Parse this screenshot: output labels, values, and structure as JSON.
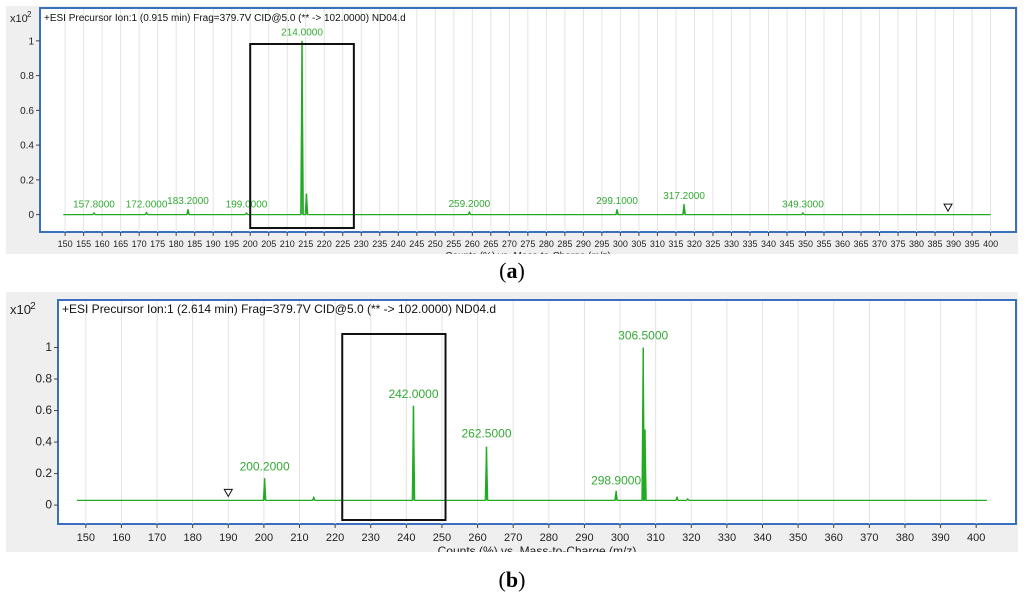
{
  "captions": {
    "a": "a",
    "b": "b"
  },
  "charts": [
    {
      "id": "a",
      "header": "+ESI Precursor Ion:1 (0.915 min) Frag=379.7V CID@5.0 (** -> 102.0000) ND04.d",
      "scale_label": "x10",
      "scale_exp": "2",
      "xlabel": "Counts (%) vs. Mass-to-Charge (m/z)",
      "line_color": "#22aa22",
      "frame_color": "#3a6fbf",
      "chart_data": {
        "type": "line",
        "xlim": [
          147,
          402
        ],
        "ylim": [
          -0.1,
          1.12
        ],
        "x_ticks": [
          150,
          155,
          160,
          165,
          170,
          175,
          180,
          185,
          190,
          195,
          200,
          205,
          210,
          215,
          220,
          225,
          230,
          235,
          240,
          245,
          250,
          255,
          260,
          265,
          270,
          275,
          280,
          285,
          290,
          295,
          300,
          305,
          310,
          315,
          320,
          325,
          330,
          335,
          340,
          345,
          350,
          355,
          360,
          365,
          370,
          375,
          380,
          385,
          390,
          395,
          400
        ],
        "y_ticks": [
          0,
          0.2,
          0.4,
          0.6,
          0.8,
          1
        ],
        "y_tick_labels": [
          "0",
          "0.2",
          "0.4",
          "0.6",
          "0.8",
          "1"
        ],
        "baseline": 0,
        "peaks": [
          {
            "x": 157.8,
            "y": 0.01
          },
          {
            "x": 172.0,
            "y": 0.012
          },
          {
            "x": 183.2,
            "y": 0.03
          },
          {
            "x": 199.0,
            "y": 0.01
          },
          {
            "x": 214.0,
            "y": 1.0
          },
          {
            "x": 215.2,
            "y": 0.12
          },
          {
            "x": 259.2,
            "y": 0.015
          },
          {
            "x": 299.1,
            "y": 0.03
          },
          {
            "x": 317.2,
            "y": 0.06
          },
          {
            "x": 349.3,
            "y": 0.01
          }
        ],
        "peak_labels": [
          {
            "x": 157.8,
            "y": 0.04,
            "text": "157.8000"
          },
          {
            "x": 172.0,
            "y": 0.04,
            "text": "172.0000"
          },
          {
            "x": 183.2,
            "y": 0.06,
            "text": "183.2000"
          },
          {
            "x": 199.0,
            "y": 0.04,
            "text": "199.0000"
          },
          {
            "x": 214.0,
            "y": 1.03,
            "text": "214.0000"
          },
          {
            "x": 259.2,
            "y": 0.045,
            "text": "259.2000"
          },
          {
            "x": 299.1,
            "y": 0.06,
            "text": "299.1000"
          },
          {
            "x": 317.2,
            "y": 0.09,
            "text": "317.2000"
          },
          {
            "x": 349.3,
            "y": 0.04,
            "text": "349.3000"
          }
        ],
        "marker": {
          "x": 388.5,
          "y": 0.02
        },
        "box": {
          "x0": 200,
          "x1": 228
        }
      }
    },
    {
      "id": "b",
      "header": "+ESI Precursor Ion:1 (2.614 min) Frag=379.7V CID@5.0 (** -> 102.0000) ND04.d",
      "scale_label": "x10",
      "scale_exp": "2",
      "xlabel": "Counts (%) vs. Mass-to-Charge (m/z)",
      "line_color": "#22aa22",
      "frame_color": "#3a6fbf",
      "chart_data": {
        "type": "line",
        "xlim": [
          145,
          405
        ],
        "ylim": [
          -0.12,
          1.2
        ],
        "x_ticks": [
          150,
          160,
          170,
          180,
          190,
          200,
          210,
          220,
          230,
          240,
          250,
          260,
          270,
          280,
          290,
          300,
          310,
          320,
          330,
          340,
          350,
          360,
          370,
          380,
          390,
          400
        ],
        "y_ticks": [
          0,
          0.2,
          0.4,
          0.6,
          0.8,
          1
        ],
        "y_tick_labels": [
          "0",
          "0.2",
          "0.4",
          "0.6",
          "0.8",
          "1"
        ],
        "baseline": 0.03,
        "peaks": [
          {
            "x": 200.2,
            "y": 0.17
          },
          {
            "x": 214.0,
            "y": 0.05
          },
          {
            "x": 242.0,
            "y": 0.63
          },
          {
            "x": 262.5,
            "y": 0.37
          },
          {
            "x": 298.9,
            "y": 0.09
          },
          {
            "x": 306.5,
            "y": 1.0
          },
          {
            "x": 307.0,
            "y": 0.48
          },
          {
            "x": 316.0,
            "y": 0.05
          },
          {
            "x": 319.0,
            "y": 0.04
          }
        ],
        "peak_labels": [
          {
            "x": 200.2,
            "y": 0.22,
            "text": "200.2000"
          },
          {
            "x": 242.0,
            "y": 0.68,
            "text": "242.0000"
          },
          {
            "x": 262.5,
            "y": 0.43,
            "text": "262.5000"
          },
          {
            "x": 298.9,
            "y": 0.13,
            "text": "298.9000"
          },
          {
            "x": 306.5,
            "y": 1.05,
            "text": "306.5000"
          }
        ],
        "marker": {
          "x": 190,
          "y": 0.055
        },
        "box": {
          "x0": 222,
          "x1": 251
        }
      }
    }
  ]
}
